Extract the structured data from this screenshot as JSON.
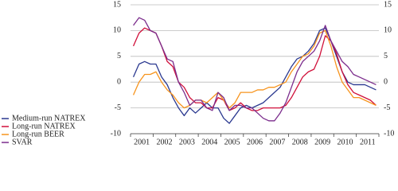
{
  "chart_data": {
    "type": "line",
    "categories": [
      "2001",
      null,
      null,
      null,
      "2002",
      null,
      null,
      null,
      "2003",
      null,
      null,
      null,
      "2004",
      null,
      null,
      null,
      "2005",
      null,
      null,
      null,
      "2006",
      null,
      null,
      null,
      "2007",
      null,
      null,
      null,
      "2008",
      null,
      null,
      null,
      "2009",
      null,
      null,
      null,
      "2010",
      null,
      null,
      null,
      "2011",
      null,
      null,
      null
    ],
    "series": [
      {
        "name": "Medium-run NATREX",
        "color": "#2b3990",
        "values": [
          1,
          3.5,
          4,
          3.5,
          3.5,
          1,
          -0.5,
          -3,
          -5,
          -6.5,
          -5,
          -6,
          -5,
          -4,
          -5,
          -5,
          -7,
          -8,
          -6.5,
          -5,
          -4.5,
          -5,
          -4.5,
          -4,
          -3,
          -2,
          -1,
          1,
          3,
          4.5,
          5,
          6,
          7.5,
          10,
          10.5,
          8,
          5,
          2,
          0,
          -0.5,
          -0.5,
          -0.5,
          -1,
          -1.5
        ]
      },
      {
        "name": "Long-run NATREX",
        "color": "#d0103a",
        "values": [
          7,
          9.5,
          10.5,
          10,
          9.5,
          7,
          4,
          3,
          0,
          -1,
          -3,
          -4,
          -4,
          -5,
          -5,
          -3,
          -3.5,
          -5.5,
          -5,
          -4,
          -5,
          -5.5,
          -5.5,
          -5,
          -5,
          -5,
          -5,
          -4.5,
          -3,
          -1,
          1,
          2,
          2.5,
          5,
          9,
          8,
          5.5,
          2,
          -0.5,
          -2,
          -2.5,
          -3,
          -3.5,
          -4.5
        ]
      },
      {
        "name": "Long-run BEER",
        "color": "#f7941d",
        "values": [
          -2.5,
          0,
          1.5,
          1.5,
          2,
          0,
          -1.5,
          -2.5,
          -4,
          -5,
          -4.5,
          -3.5,
          -3.5,
          -4,
          -3,
          -2,
          -3.5,
          -5,
          -4,
          -2,
          -2,
          -2,
          -1.5,
          -1.5,
          -1,
          -1,
          -0.5,
          0,
          2,
          3.5,
          5,
          5.5,
          7,
          9.5,
          10,
          7,
          3,
          0,
          -1.5,
          -3,
          -3,
          -3.5,
          -4,
          -4.5
        ]
      },
      {
        "name": "SVAR",
        "color": "#7b2c8c",
        "values": [
          11,
          12.5,
          12,
          10,
          9.5,
          7,
          4.5,
          4,
          0,
          -2,
          -4.5,
          -3.5,
          -3.5,
          -5,
          -5.5,
          -2,
          -3,
          -5.5,
          -4.5,
          -4.5,
          -5,
          -5,
          -6,
          -7,
          -7.5,
          -7.5,
          -6,
          -4,
          -1,
          2,
          4,
          5,
          6,
          8,
          11,
          8,
          6,
          4,
          3,
          1.5,
          1,
          0.5,
          0,
          -0.5
        ]
      }
    ],
    "ylim": [
      -10,
      15
    ],
    "yticks": [
      -10,
      -5,
      0,
      5,
      10,
      15
    ],
    "y2lim": [
      -10,
      15
    ],
    "y2ticks": [
      -10,
      -5,
      0,
      5,
      10,
      15
    ],
    "grid": true,
    "legend": "bottom-left"
  }
}
